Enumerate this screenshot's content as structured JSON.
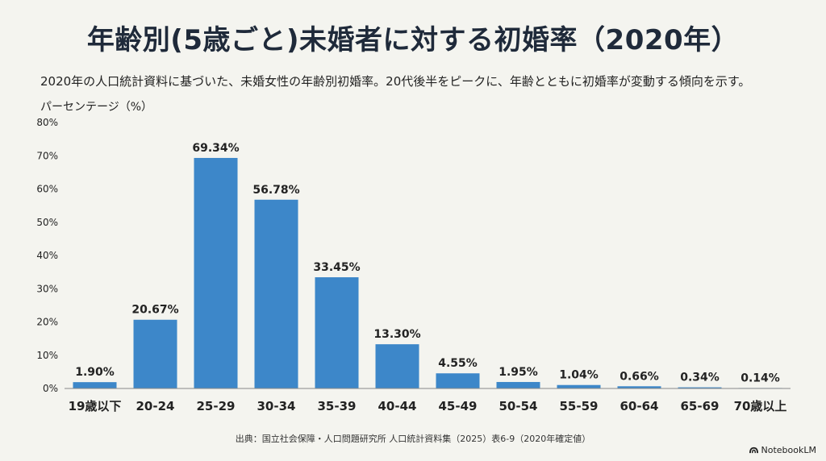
{
  "colors": {
    "bar": "#3d87c9",
    "axis": "#888888",
    "background": "#f4f4ef"
  },
  "chart_data": {
    "type": "bar",
    "title": "年齢別(5歳ごと)未婚者に対する初婚率（2020年）",
    "subtitle": "2020年の人口統計資料に基づいた、未婚女性の年齢別初婚率。20代後半をピークに、年齢とともに初婚率が変動する傾向を示す。",
    "ylabel": "パーセンテージ（%）",
    "xlabel": "",
    "ylim": [
      0,
      80
    ],
    "yticks": [
      "0%",
      "10%",
      "20%",
      "30%",
      "40%",
      "50%",
      "60%",
      "70%",
      "80%"
    ],
    "categories": [
      "19歳以下",
      "20-24",
      "25-29",
      "30-34",
      "35-39",
      "40-44",
      "45-49",
      "50-54",
      "55-59",
      "60-64",
      "65-69",
      "70歳以上"
    ],
    "values": [
      1.9,
      20.67,
      69.34,
      56.78,
      33.45,
      13.3,
      4.55,
      1.95,
      1.04,
      0.66,
      0.34,
      0.14
    ],
    "data_labels": [
      "1.90%",
      "20.67%",
      "69.34%",
      "56.78%",
      "33.45%",
      "13.30%",
      "4.55%",
      "1.95%",
      "1.04%",
      "0.66%",
      "0.34%",
      "0.14%"
    ],
    "grid": false
  },
  "footer": {
    "source": "出典：国立社会保障・人口問題研究所 人口統計資料集（2025）表6-9（2020年確定値）",
    "brand": "NotebookLM"
  }
}
